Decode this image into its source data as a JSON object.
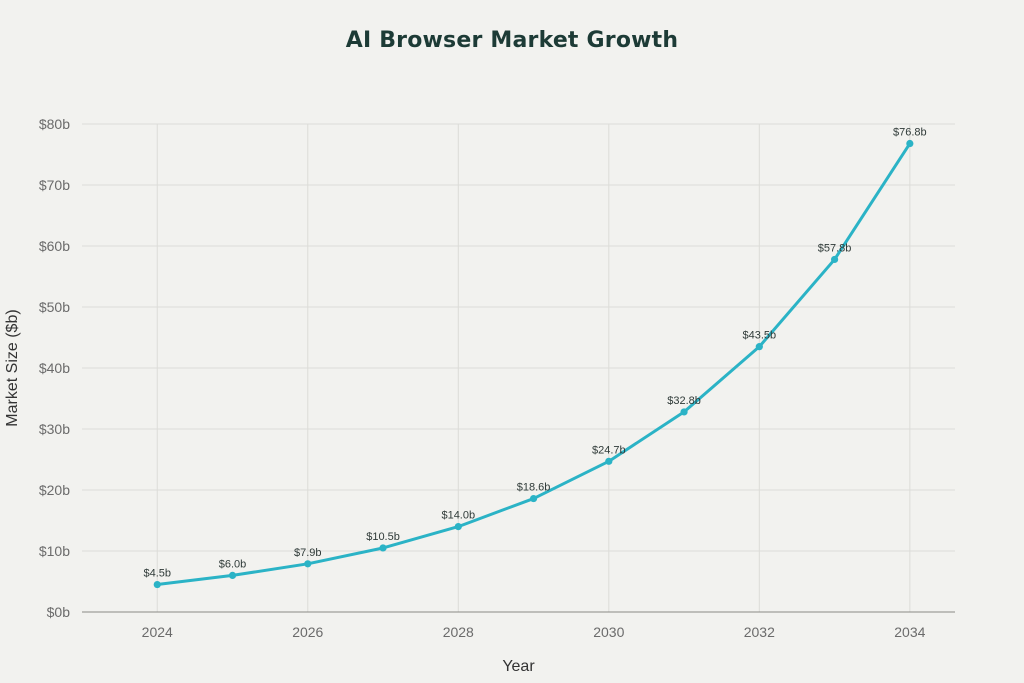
{
  "colors": {
    "background": "#f2f2ef",
    "series": "#2bb3c6",
    "title": "#1d3b36"
  },
  "chart_data": {
    "type": "line",
    "title": "AI Browser Market Growth",
    "xlabel": "Year",
    "ylabel": "Market Size ($b)",
    "x": [
      2024,
      2025,
      2026,
      2027,
      2028,
      2029,
      2030,
      2031,
      2032,
      2033,
      2034
    ],
    "xlim": [
      2023,
      2034.6
    ],
    "ylim": [
      0,
      80
    ],
    "x_ticks": [
      "2024",
      "2026",
      "2028",
      "2030",
      "2032",
      "2034"
    ],
    "x_tick_values": [
      2024,
      2026,
      2028,
      2030,
      2032,
      2034
    ],
    "y_ticks": [
      "$0b",
      "$10b",
      "$20b",
      "$30b",
      "$40b",
      "$50b",
      "$60b",
      "$70b",
      "$80b"
    ],
    "y_tick_values": [
      0,
      10,
      20,
      30,
      40,
      50,
      60,
      70,
      80
    ],
    "grid": true,
    "series": [
      {
        "values": [
          4.5,
          6.0,
          7.9,
          10.5,
          14.0,
          18.6,
          24.7,
          32.8,
          43.5,
          57.8,
          76.8
        ],
        "data_labels": [
          "$4.5b",
          "$6.0b",
          "$7.9b",
          "$10.5b",
          "$14.0b",
          "$18.6b",
          "$24.7b",
          "$32.8b",
          "$43.5b",
          "$57.8b",
          "$76.8b"
        ]
      }
    ]
  }
}
